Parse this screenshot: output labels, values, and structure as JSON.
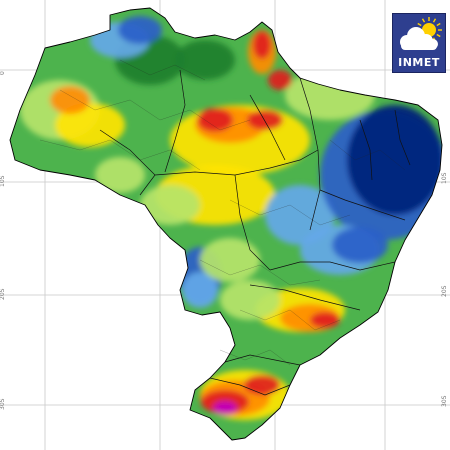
{
  "map": {
    "region": "Brasil",
    "grid": {
      "lat_labels": [
        "0",
        "10S",
        "20S",
        "30S"
      ]
    },
    "palette": {
      "violet": "#c000c0",
      "red": "#e02020",
      "orange": "#ff8c00",
      "yellow": "#ffe400",
      "light_green": "#b6e46a",
      "green": "#4db34d",
      "dark_green": "#1e7f2e",
      "light_blue": "#64a8e8",
      "blue": "#2a5fc8",
      "navy": "#001f7a",
      "cloud": "#ffffff",
      "sun": "#ffd000"
    }
  },
  "logo": {
    "text": "INMET",
    "icon": "cloud-sun-icon"
  }
}
